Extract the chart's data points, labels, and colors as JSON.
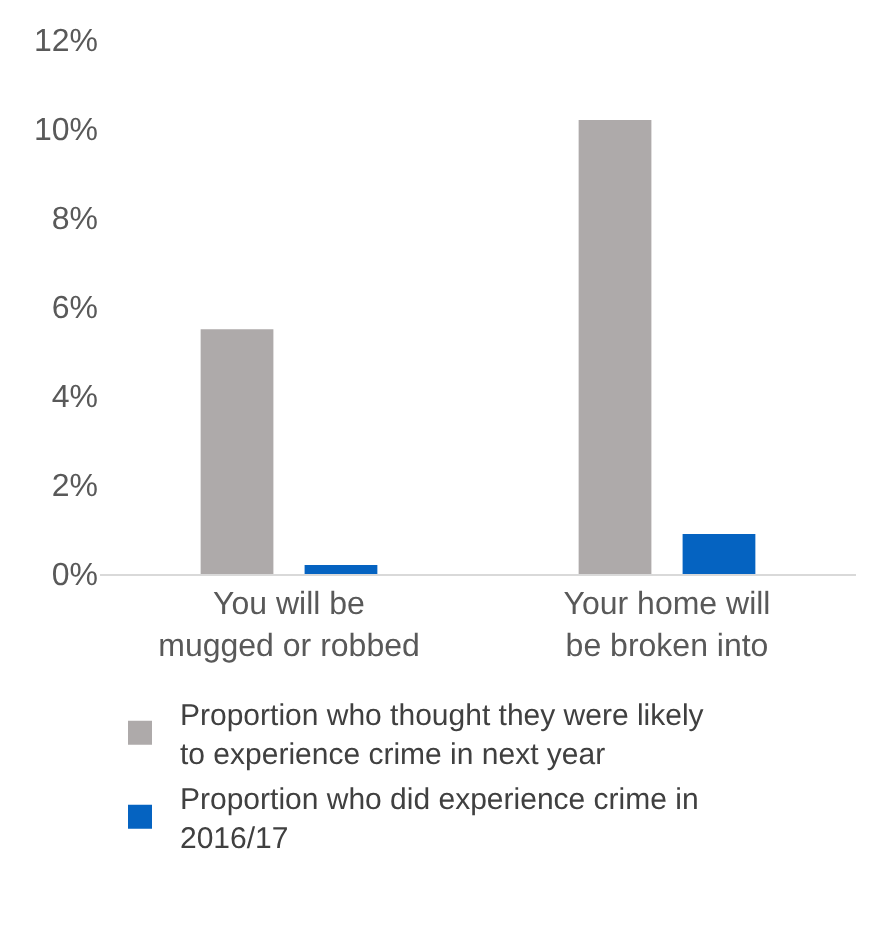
{
  "chart_data": {
    "type": "bar",
    "categories": [
      "You will be mugged or robbed",
      "Your home will be broken into"
    ],
    "series": [
      {
        "name": "Proportion who thought they were likely to experience crime in next year",
        "color": "#aeaaaa",
        "values": [
          5.5,
          10.2
        ]
      },
      {
        "name": "Proportion who did experience crime in 2016/17",
        "color": "#0563c1",
        "values": [
          0.2,
          0.9
        ]
      }
    ],
    "ylim": [
      0,
      12
    ],
    "yticks": [
      {
        "value": 0,
        "label": "0%"
      },
      {
        "value": 2,
        "label": "2%"
      },
      {
        "value": 4,
        "label": "4%"
      },
      {
        "value": 6,
        "label": "6%"
      },
      {
        "value": 8,
        "label": "8%"
      },
      {
        "value": 10,
        "label": "10%"
      },
      {
        "value": 12,
        "label": "12%"
      }
    ],
    "grid": false,
    "legend": "bottom"
  }
}
